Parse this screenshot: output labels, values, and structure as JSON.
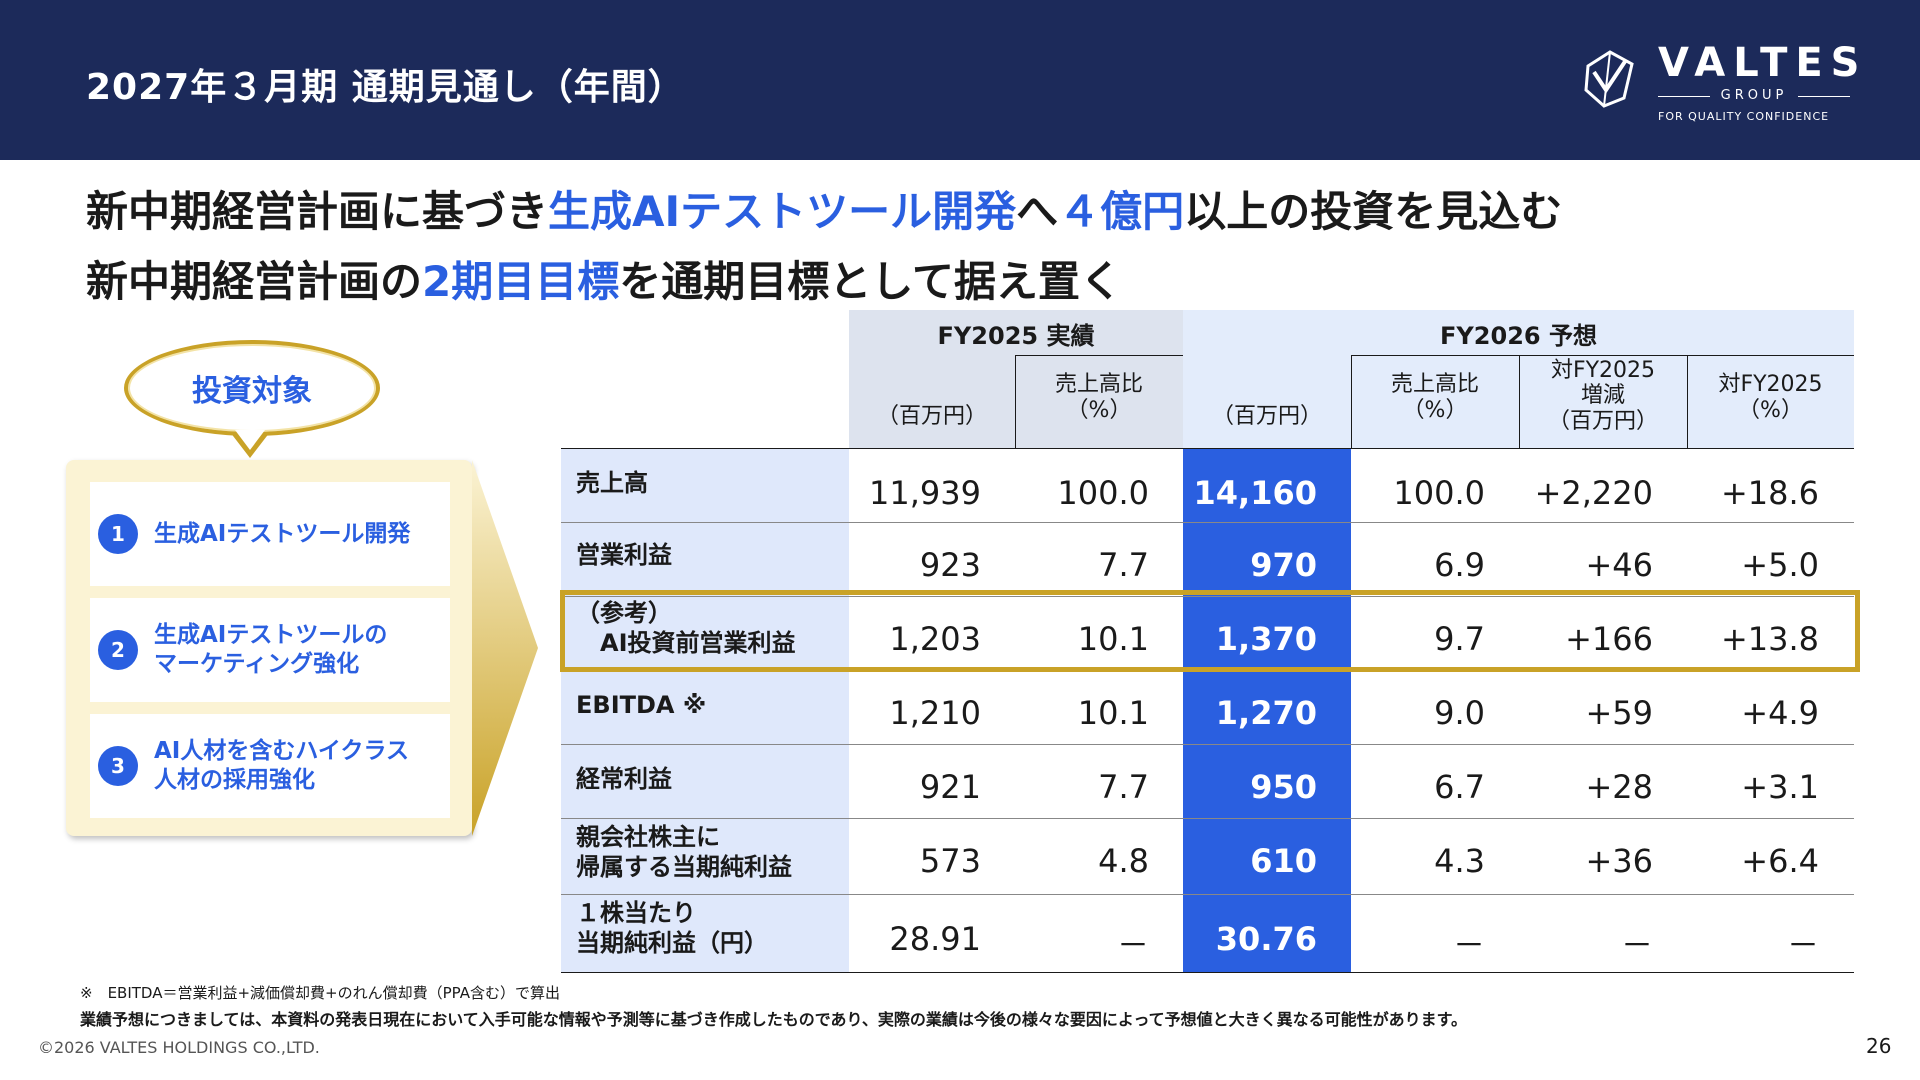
{
  "header": {
    "title": "2027年３月期 通期見通し（年間）",
    "logo": {
      "name": "VALTES",
      "group": "GROUP",
      "tagline": "FOR QUALITY CONFIDENCE"
    },
    "bg_color": "#1c2a5a"
  },
  "headline": {
    "line1": {
      "a": "新中期経営計画に基づき",
      "b": "生成AIテストツール開発",
      "c": "へ",
      "d": "４億円",
      "e": "以上の投資を見込む"
    },
    "line2": {
      "a": "新中期経営計画の",
      "b": "2期目目標",
      "c": "を通期目標として据え置く"
    },
    "accent_color": "#2a5fe0"
  },
  "investment": {
    "title": "投資対象",
    "items": [
      {
        "num": "1",
        "label": "生成AIテストツール開発"
      },
      {
        "num": "2",
        "label": "生成AIテストツールの\nマーケティング強化"
      },
      {
        "num": "3",
        "label": "AI人材を含むハイクラス\n人材の採用強化"
      }
    ]
  },
  "table": {
    "group_actual": "FY2025 実績",
    "group_forecast": "FY2026 予想",
    "col_headers": [
      "（百万円）",
      "売上高比\n（%）",
      "（百万円）",
      "売上高比\n（%）",
      "対FY2025\n増減\n（百万円）",
      "対FY2025\n（%）"
    ],
    "rows": [
      {
        "label": "売上高",
        "values": [
          "11,939",
          "100.0",
          "14,160",
          "100.0",
          "+2,220",
          "+18.6"
        ]
      },
      {
        "label": "営業利益",
        "values": [
          "923",
          "7.7",
          "970",
          "6.9",
          "+46",
          "+5.0"
        ]
      },
      {
        "label": "（参考）\n　AI投資前営業利益",
        "values": [
          "1,203",
          "10.1",
          "1,370",
          "9.7",
          "+166",
          "+13.8"
        ]
      },
      {
        "label": "EBITDA ※",
        "values": [
          "1,210",
          "10.1",
          "1,270",
          "9.0",
          "+59",
          "+4.9"
        ]
      },
      {
        "label": "経常利益",
        "values": [
          "921",
          "7.7",
          "950",
          "6.7",
          "+28",
          "+3.1"
        ]
      },
      {
        "label": "親会社株主に\n帰属する当期純利益",
        "values": [
          "573",
          "4.8",
          "610",
          "4.3",
          "+36",
          "+6.4"
        ]
      },
      {
        "label": "１株当たり\n当期純利益（円）",
        "values": [
          "28.91",
          "－",
          "30.76",
          "－",
          "－",
          "－"
        ]
      }
    ]
  },
  "footer": {
    "note1": "※　EBITDA＝営業利益+減価償却費+のれん償却費（PPA含む）で算出",
    "note2": "業績予想につきましては、本資料の発表日現在において入手可能な情報や予測等に基づき作成したものであり、実際の業績は今後の様々な要因によって予想値と大きく異なる可能性があります。",
    "copyright": "©2026 VALTES HOLDINGS CO.,LTD.",
    "page": "26"
  }
}
